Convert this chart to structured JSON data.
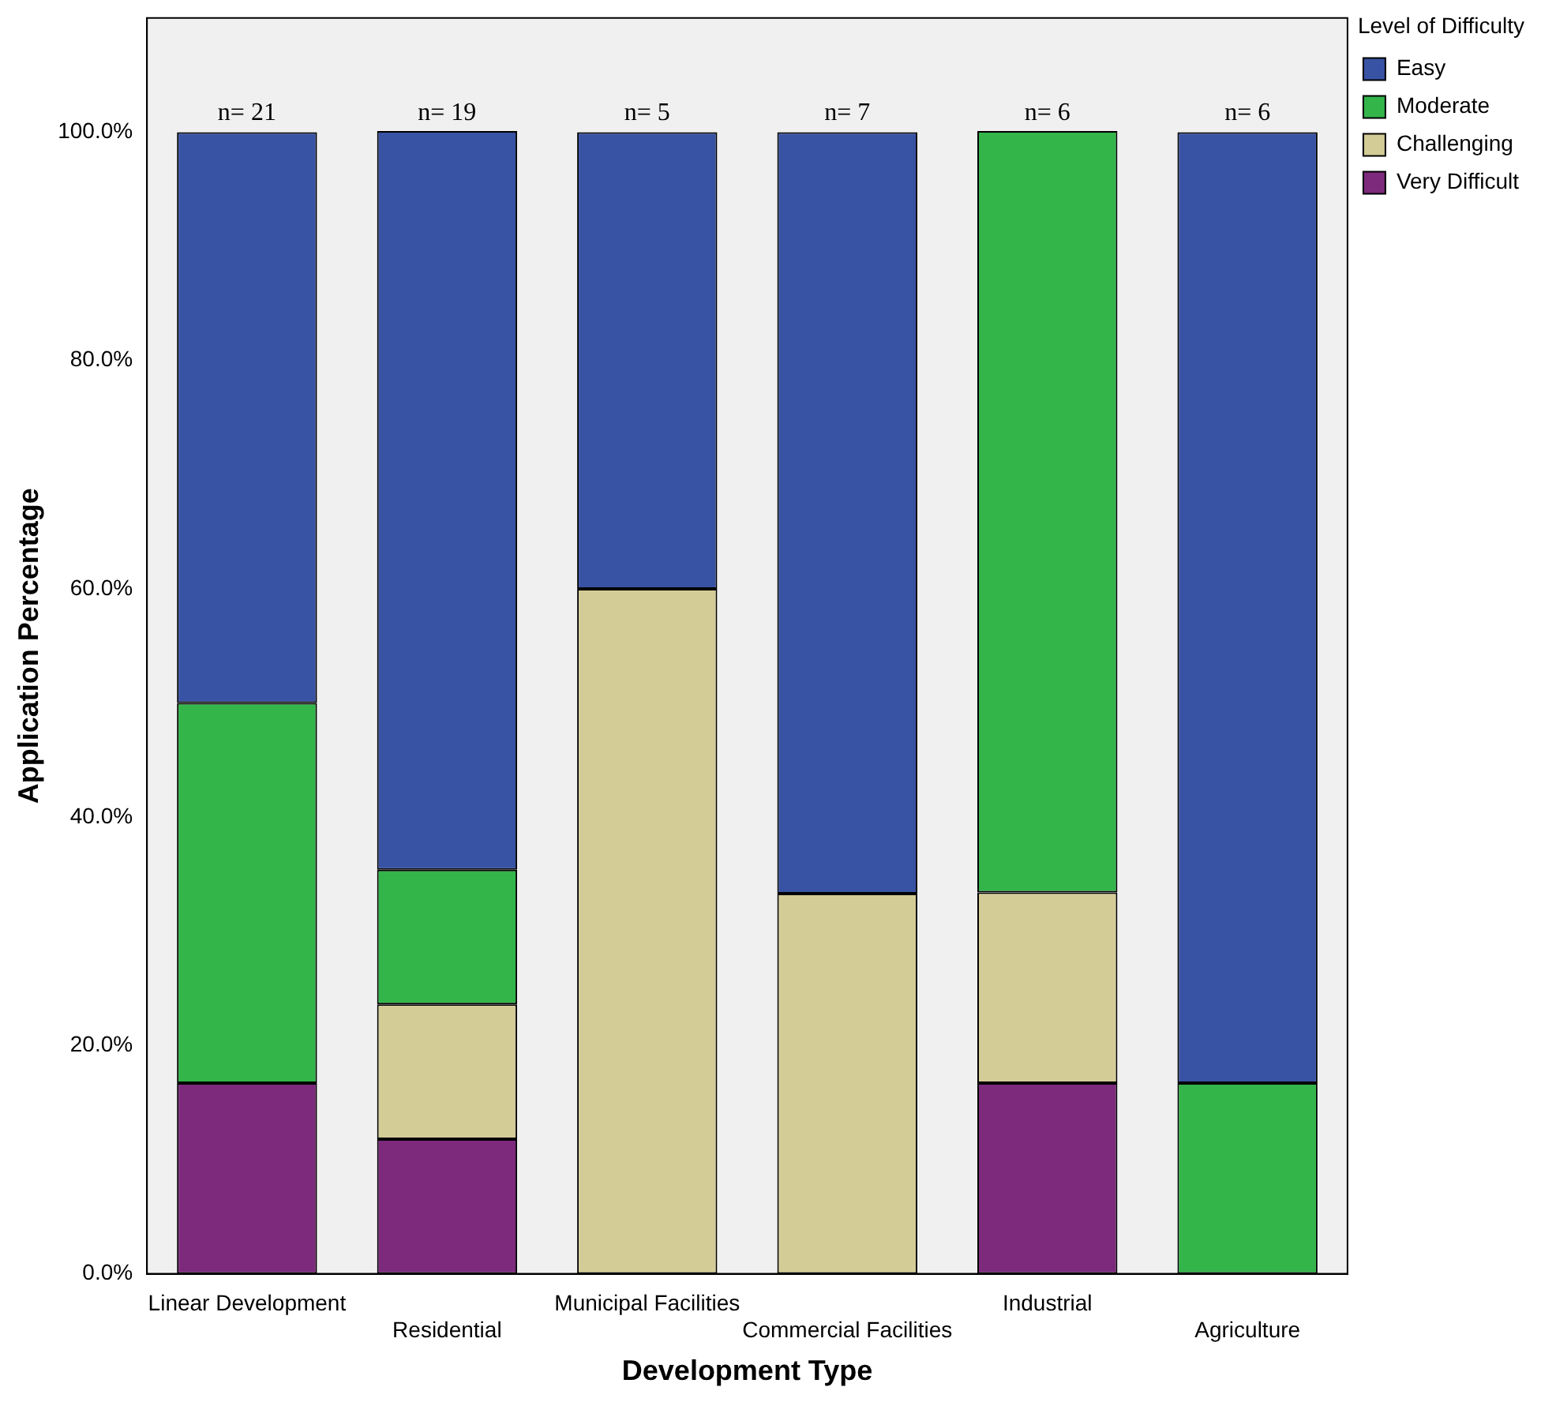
{
  "chart_data": {
    "type": "bar",
    "stacked": true,
    "xlabel": "Development Type",
    "ylabel": "Application Percentage",
    "legend_title": "Level of Difficulty",
    "legend": "right",
    "grid": false,
    "categories": [
      "Linear Development",
      "Residential",
      "Municipal Facilities",
      "Commercial Facilities",
      "Industrial",
      "Agriculture"
    ],
    "series": [
      {
        "name": "Very Difficult",
        "color": "#7d2a7d",
        "values": [
          16.7,
          11.8,
          0,
          0,
          16.7,
          0
        ]
      },
      {
        "name": "Challenging",
        "color": "#d4cc96",
        "values": [
          0,
          11.8,
          60,
          33.3,
          16.7,
          0
        ]
      },
      {
        "name": "Moderate",
        "color": "#33b54a",
        "values": [
          33.3,
          11.8,
          0,
          0,
          66.7,
          16.7
        ]
      },
      {
        "name": "Easy",
        "color": "#3953a4",
        "values": [
          50,
          64.7,
          40,
          66.7,
          0,
          83.3
        ]
      }
    ],
    "ylim": [
      0,
      110
    ],
    "yticks": [
      {
        "value": 0,
        "label": "0.0%"
      },
      {
        "value": 20,
        "label": "20.0%"
      },
      {
        "value": 40,
        "label": "40.0%"
      },
      {
        "value": 60,
        "label": "60.0%"
      },
      {
        "value": 80,
        "label": "80.0%"
      },
      {
        "value": 100,
        "label": "100.0%"
      }
    ],
    "annotations": [
      {
        "text": "n= 21",
        "x": "Linear Development",
        "y": 100
      },
      {
        "text": "n= 19",
        "x": "Residential",
        "y": 100
      },
      {
        "text": "n= 5",
        "x": "Municipal Facilities",
        "y": 100
      },
      {
        "text": "n= 7",
        "x": "Commercial Facilities",
        "y": 100
      },
      {
        "text": "n= 6",
        "x": "Industrial",
        "y": 100
      },
      {
        "text": "n= 6",
        "x": "Agriculture",
        "y": 100
      }
    ]
  }
}
